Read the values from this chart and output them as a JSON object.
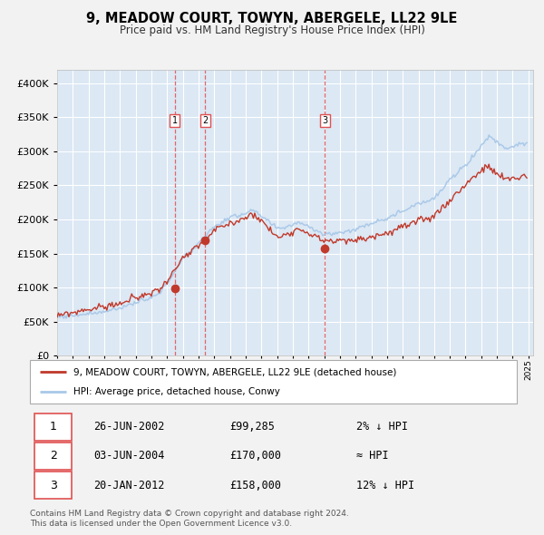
{
  "title": "9, MEADOW COURT, TOWYN, ABERGELE, LL22 9LE",
  "subtitle": "Price paid vs. HM Land Registry's House Price Index (HPI)",
  "legend_line1": "9, MEADOW COURT, TOWYN, ABERGELE, LL22 9LE (detached house)",
  "legend_line2": "HPI: Average price, detached house, Conwy",
  "footer1": "Contains HM Land Registry data © Crown copyright and database right 2024.",
  "footer2": "This data is licensed under the Open Government Licence v3.0.",
  "transactions": [
    {
      "num": 1,
      "date": "26-JUN-2002",
      "price": 99285,
      "rel": "2% ↓ HPI",
      "date_num": 2002.49
    },
    {
      "num": 2,
      "date": "03-JUN-2004",
      "price": 170000,
      "rel": "≈ HPI",
      "date_num": 2004.42
    },
    {
      "num": 3,
      "date": "20-JAN-2012",
      "price": 158000,
      "rel": "12% ↓ HPI",
      "date_num": 2012.05
    }
  ],
  "hpi_color": "#a8c8e8",
  "price_color": "#c0392b",
  "dashed_color": "#e05050",
  "plot_bg": "#dce8f4",
  "grid_color": "#ffffff",
  "fig_bg": "#f0f0f0",
  "ylim": [
    0,
    420000
  ],
  "yticks": [
    0,
    50000,
    100000,
    150000,
    200000,
    250000,
    300000,
    350000,
    400000
  ],
  "start_year": 1995,
  "end_year": 2025
}
